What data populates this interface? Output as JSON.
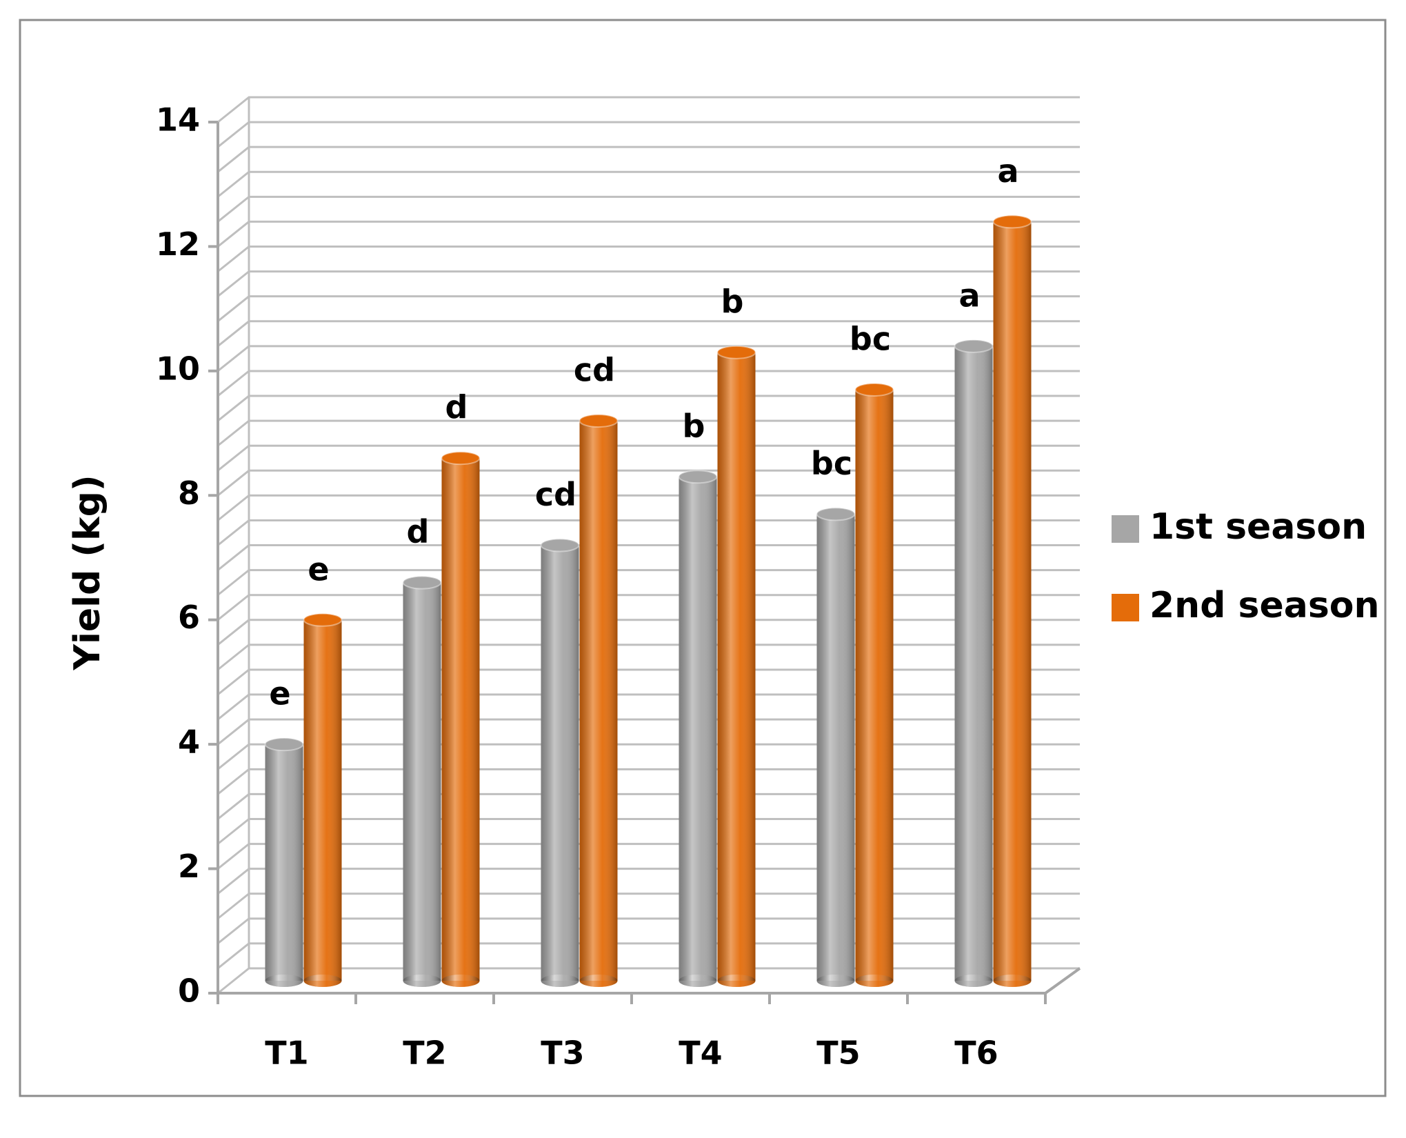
{
  "chart_data": {
    "type": "bar3d",
    "y_label": "Yield (kg)",
    "categories": [
      "T1",
      "T2",
      "T3",
      "T4",
      "T5",
      "T6"
    ],
    "series": [
      {
        "name": "1st season",
        "color": "#a6a6a6",
        "values": [
          3.8,
          6.4,
          7.0,
          8.1,
          7.5,
          10.2
        ],
        "letters": [
          "e",
          "d",
          "cd",
          "b",
          "bc",
          "a"
        ]
      },
      {
        "name": "2nd season",
        "color": "#e46c0a",
        "values": [
          5.8,
          8.4,
          9.0,
          10.1,
          9.5,
          12.2
        ],
        "letters": [
          "e",
          "d",
          "cd",
          "b",
          "bc",
          "a"
        ]
      }
    ],
    "ylim": [
      0,
      14
    ],
    "yticks": [
      0,
      2,
      4,
      6,
      8,
      10,
      12,
      14
    ],
    "minor_yticks": [
      0.4,
      0.8,
      1.2,
      1.6,
      2.4,
      2.8,
      3.2,
      3.6,
      4.4,
      4.8,
      5.2,
      5.6,
      6.4,
      6.8,
      7.2,
      7.6,
      8.4,
      8.8,
      9.2,
      9.6,
      10.4,
      10.8,
      11.2,
      11.6,
      12.4,
      12.8,
      13.2,
      13.6
    ],
    "grid": true,
    "legend": "right"
  }
}
